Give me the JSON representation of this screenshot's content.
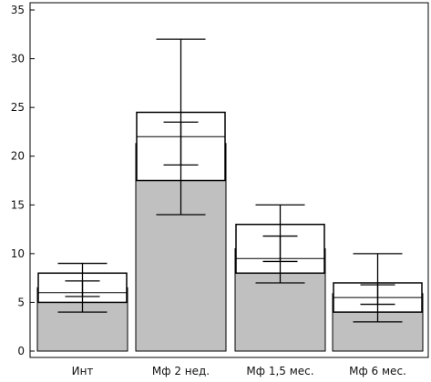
{
  "chart_data": {
    "type": "bar",
    "categories": [
      "Инт",
      "Мф 2 нед.",
      "Мф 1,5 мес.",
      "Мф 6 мес."
    ],
    "bar_values": [
      6.5,
      21.3,
      10.5,
      5.9
    ],
    "box_low": [
      5.0,
      17.5,
      8.0,
      4.0
    ],
    "box_high": [
      8.0,
      24.5,
      13.0,
      7.0
    ],
    "box_median": [
      6.0,
      22.0,
      9.5,
      5.5
    ],
    "ci_low": [
      5.6,
      19.1,
      9.2,
      4.8
    ],
    "ci_high": [
      7.2,
      23.5,
      11.8,
      6.8
    ],
    "whisker_low": [
      4.0,
      14.0,
      7.0,
      3.0
    ],
    "whisker_high": [
      9.0,
      32.0,
      15.0,
      10.0
    ],
    "yticks": [
      0,
      5,
      10,
      15,
      20,
      25,
      30,
      35
    ],
    "ylim": [
      0,
      36.5
    ],
    "title": "",
    "xlabel": "",
    "ylabel": "",
    "grid": false,
    "colors": {
      "bar_fill": "#c0c0c0",
      "box_fill": "#ffffff",
      "stroke": "#000000"
    }
  }
}
